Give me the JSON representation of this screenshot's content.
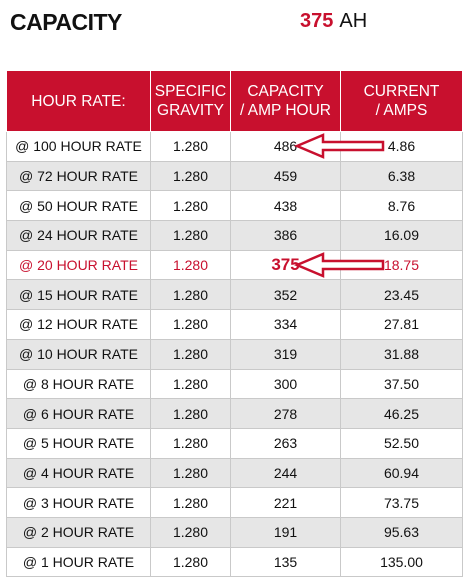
{
  "header": {
    "title": "CAPACITY",
    "capacity_value": "375",
    "capacity_unit": "AH"
  },
  "table": {
    "columns": [
      [
        "HOUR RATE:"
      ],
      [
        "SPECIFIC",
        "GRAVITY"
      ],
      [
        "CAPACITY",
        "/ AMP HOUR"
      ],
      [
        "CURRENT",
        "/ AMPS"
      ]
    ],
    "rows": [
      {
        "rate": "@ 100 HOUR RATE",
        "gravity": "1.280",
        "capacity": "486",
        "current": "4.86"
      },
      {
        "rate": "@ 72 HOUR RATE",
        "gravity": "1.280",
        "capacity": "459",
        "current": "6.38"
      },
      {
        "rate": "@ 50 HOUR RATE",
        "gravity": "1.280",
        "capacity": "438",
        "current": "8.76"
      },
      {
        "rate": "@ 24 HOUR RATE",
        "gravity": "1.280",
        "capacity": "386",
        "current": "16.09"
      },
      {
        "rate": "@ 20 HOUR RATE",
        "gravity": "1.280",
        "capacity": "375",
        "current": "18.75"
      },
      {
        "rate": "@ 15 HOUR RATE",
        "gravity": "1.280",
        "capacity": "352",
        "current": "23.45"
      },
      {
        "rate": "@ 12 HOUR RATE",
        "gravity": "1.280",
        "capacity": "334",
        "current": "27.81"
      },
      {
        "rate": "@ 10 HOUR RATE",
        "gravity": "1.280",
        "capacity": "319",
        "current": "31.88"
      },
      {
        "rate": "@ 8 HOUR RATE",
        "gravity": "1.280",
        "capacity": "300",
        "current": "37.50"
      },
      {
        "rate": "@ 6 HOUR RATE",
        "gravity": "1.280",
        "capacity": "278",
        "current": "46.25"
      },
      {
        "rate": "@ 5 HOUR RATE",
        "gravity": "1.280",
        "capacity": "263",
        "current": "52.50"
      },
      {
        "rate": "@ 4 HOUR RATE",
        "gravity": "1.280",
        "capacity": "244",
        "current": "60.94"
      },
      {
        "rate": "@ 3 HOUR RATE",
        "gravity": "1.280",
        "capacity": "221",
        "current": "73.75"
      },
      {
        "rate": "@ 2 HOUR RATE",
        "gravity": "1.280",
        "capacity": "191",
        "current": "95.63"
      },
      {
        "rate": "@ 1 HOUR RATE",
        "gravity": "1.280",
        "capacity": "135",
        "current": "135.00"
      }
    ],
    "highlight_rows": [
      4
    ],
    "arrow_rows": [
      0,
      4
    ]
  },
  "colors": {
    "accent": "#c8102e",
    "header_text": "#ffffff",
    "alt_row": "#e6e6e6",
    "border": "#c9c9c9"
  },
  "icons": {
    "arrow": "left-arrow-outline"
  }
}
